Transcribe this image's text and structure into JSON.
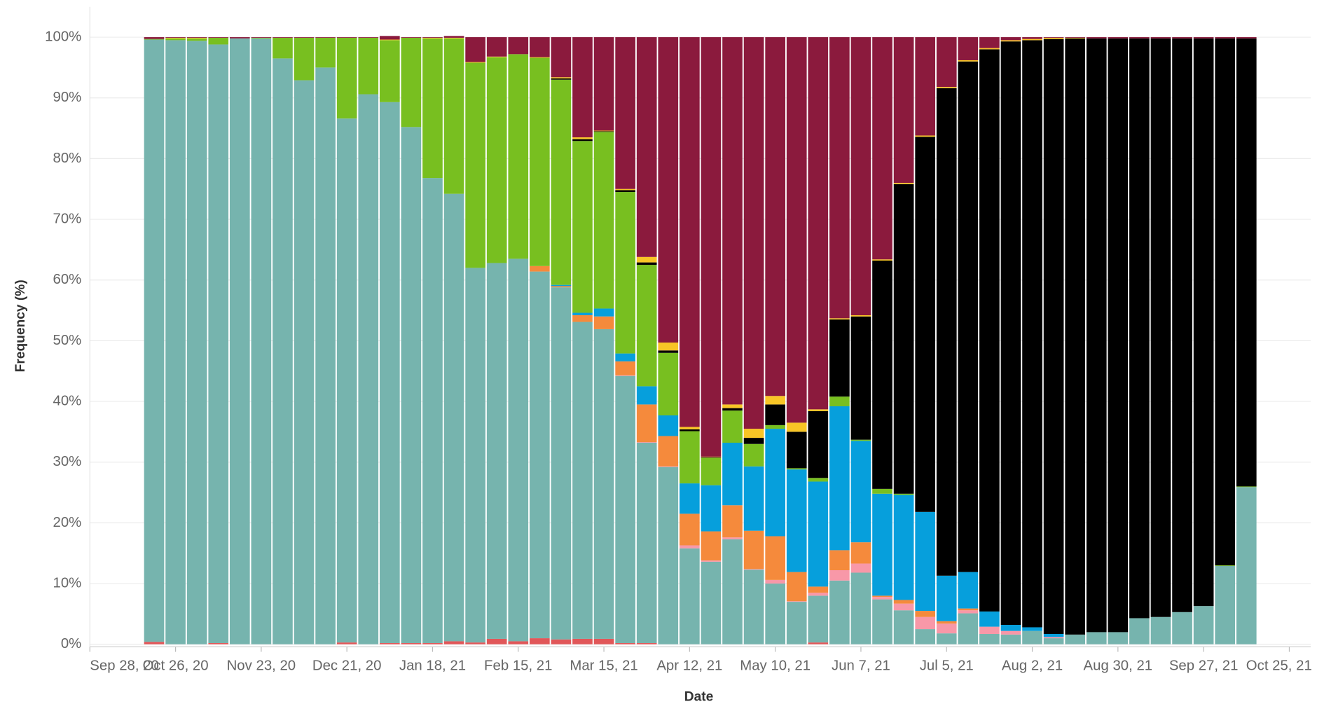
{
  "chart_data": {
    "type": "stacked_bar",
    "x_label": "Date",
    "y_label": "Frequency (%)",
    "x": [
      "2020-10-19",
      "2020-10-26",
      "2020-11-02",
      "2020-11-09",
      "2020-11-16",
      "2020-11-23",
      "2020-11-30",
      "2020-12-07",
      "2020-12-14",
      "2020-12-21",
      "2020-12-28",
      "2021-01-04",
      "2021-01-11",
      "2021-01-18",
      "2021-01-25",
      "2021-02-01",
      "2021-02-08",
      "2021-02-15",
      "2021-02-22",
      "2021-03-01",
      "2021-03-08",
      "2021-03-15",
      "2021-03-22",
      "2021-03-29",
      "2021-04-05",
      "2021-04-12",
      "2021-04-19",
      "2021-04-26",
      "2021-05-03",
      "2021-05-10",
      "2021-05-17",
      "2021-05-24",
      "2021-05-31",
      "2021-06-07",
      "2021-06-14",
      "2021-06-21",
      "2021-06-28",
      "2021-07-05",
      "2021-07-12",
      "2021-07-19",
      "2021-07-26",
      "2021-08-02",
      "2021-08-09",
      "2021-08-16",
      "2021-08-23",
      "2021-08-30",
      "2021-09-06",
      "2021-09-13",
      "2021-09-20",
      "2021-09-27",
      "2021-10-04",
      "2021-10-11"
    ],
    "series": [
      {
        "color": "#e15759",
        "values": [
          0.4,
          0,
          0,
          0.2,
          0,
          0,
          0,
          0,
          0,
          0.3,
          0,
          0.2,
          0.2,
          0.2,
          0.5,
          0.3,
          0.9,
          0.5,
          1.0,
          0.8,
          0.9,
          0.9,
          0.2,
          0.2,
          0,
          0,
          0,
          0,
          0,
          0,
          0,
          0.3,
          0,
          0,
          0,
          0,
          0,
          0,
          0,
          0,
          0,
          0,
          0,
          0,
          0,
          0,
          0,
          0,
          0,
          0,
          0,
          0
        ]
      },
      {
        "color": "#76b4ae",
        "values": [
          99.2,
          99.5,
          99.4,
          98.6,
          99.8,
          99.8,
          96.5,
          92.9,
          95.0,
          86.3,
          90.6,
          89.1,
          85.0,
          76.6,
          73.7,
          61.7,
          61.9,
          63.0,
          60.4,
          58.0,
          52.2,
          51.0,
          44.0,
          33.0,
          29.2,
          15.8,
          13.6,
          17.3,
          12.3,
          10.0,
          7.0,
          7.7,
          10.5,
          11.8,
          7.4,
          5.6,
          2.5,
          1.8,
          5.1,
          1.7,
          1.6,
          2.2,
          1.0,
          1.6,
          2.0,
          2.0,
          4.3,
          4.5,
          5.3,
          6.3,
          12.9,
          25.9
        ]
      },
      {
        "color": "#f898a8",
        "values": [
          0,
          0,
          0,
          0,
          0,
          0,
          0,
          0,
          0,
          0,
          0,
          0,
          0,
          0,
          0,
          0,
          0,
          0,
          0,
          0,
          0,
          0,
          0.1,
          0.1,
          0.1,
          0.5,
          0.2,
          0.3,
          0.1,
          0.6,
          0.1,
          0.5,
          1.7,
          1.5,
          0.4,
          1.1,
          2.0,
          1.6,
          0.5,
          1.2,
          0.6,
          0,
          0.2,
          0,
          0,
          0,
          0,
          0,
          0,
          0,
          0,
          0
        ]
      },
      {
        "color": "#f58a3c",
        "values": [
          0,
          0,
          0,
          0,
          0,
          0,
          0,
          0,
          0,
          0,
          0,
          0,
          0,
          0,
          0,
          0,
          0,
          0,
          0.9,
          0.2,
          1.1,
          2.1,
          2.3,
          6.2,
          5.0,
          5.2,
          4.8,
          5.3,
          6.3,
          7.2,
          4.8,
          1.0,
          3.3,
          3.5,
          0.2,
          0.6,
          1.0,
          0.4,
          0.3,
          0,
          0,
          0,
          0,
          0,
          0,
          0,
          0,
          0,
          0,
          0,
          0,
          0
        ]
      },
      {
        "color": "#069fdc",
        "values": [
          0,
          0,
          0,
          0,
          0,
          0,
          0,
          0,
          0,
          0,
          0,
          0,
          0,
          0,
          0,
          0,
          0,
          0,
          0,
          0.2,
          0.4,
          1.3,
          1.3,
          3.0,
          3.4,
          5.0,
          7.6,
          10.3,
          10.6,
          17.7,
          16.9,
          17.3,
          23.7,
          16.7,
          16.8,
          17.3,
          16.3,
          7.5,
          6.0,
          2.5,
          1.0,
          0.6,
          0.5,
          0,
          0,
          0,
          0,
          0,
          0,
          0,
          0,
          0
        ]
      },
      {
        "color": "#78bf20",
        "values": [
          0.1,
          0.3,
          0.4,
          1.1,
          0,
          0.1,
          3.4,
          7.0,
          4.9,
          13.3,
          9.3,
          10.2,
          14.7,
          23.0,
          25.6,
          33.8,
          33.9,
          33.7,
          34.3,
          33.8,
          28.3,
          29.1,
          26.6,
          20.0,
          10.3,
          8.6,
          4.5,
          5.3,
          3.7,
          0.6,
          0.2,
          0.6,
          1.6,
          0.2,
          0.8,
          0.2,
          0,
          0,
          0,
          0,
          0,
          0,
          0,
          0,
          0,
          0,
          0,
          0,
          0,
          0,
          0.1,
          0.1
        ]
      },
      {
        "color": "#000000",
        "values": [
          0,
          0,
          0,
          0,
          0,
          0,
          0,
          0,
          0,
          0,
          0,
          0,
          0,
          0,
          0,
          0,
          0,
          0,
          0,
          0.2,
          0.3,
          0.1,
          0.3,
          0.4,
          0.4,
          0.3,
          0.1,
          0.4,
          1.0,
          3.4,
          6.0,
          11.0,
          12.7,
          20.3,
          37.6,
          51.0,
          61.8,
          80.3,
          84.1,
          92.6,
          96.1,
          96.7,
          98.0,
          98.2,
          97.8,
          97.8,
          95.5,
          95.3,
          94.5,
          93.5,
          86.8,
          73.8
        ]
      },
      {
        "color": "#f8c526",
        "values": [
          0,
          0.1,
          0.1,
          0,
          0,
          0,
          0,
          0,
          0,
          0,
          0,
          0.1,
          0,
          0.1,
          0.1,
          0.1,
          0.1,
          0,
          0.1,
          0.2,
          0.3,
          0.1,
          0.2,
          0.9,
          1.3,
          0.4,
          0.1,
          0.6,
          1.5,
          1.4,
          1.5,
          0.3,
          0.2,
          0.2,
          0.2,
          0.2,
          0.2,
          0.2,
          0.2,
          0.2,
          0.2,
          0.2,
          0.2,
          0.1,
          0,
          0,
          0,
          0,
          0,
          0,
          0,
          0
        ]
      },
      {
        "color": "#8b1a3d",
        "values": [
          0.3,
          0.1,
          0.1,
          0.1,
          0.2,
          0.1,
          0.1,
          0.1,
          0.1,
          0.1,
          0.1,
          0.6,
          0.1,
          0.1,
          0.3,
          4.1,
          3.2,
          2.8,
          3.3,
          6.6,
          16.5,
          15.4,
          25.0,
          36.2,
          50.3,
          64.2,
          69.1,
          60.5,
          64.5,
          59.1,
          63.5,
          61.3,
          46.3,
          45.8,
          36.6,
          24.0,
          16.2,
          8.2,
          3.8,
          1.8,
          0.5,
          0.3,
          0.1,
          0.1,
          0.2,
          0.2,
          0.2,
          0.2,
          0.2,
          0.2,
          0.2,
          0.2
        ]
      }
    ],
    "xlim": [
      "2020-09-28",
      "2021-11-01"
    ],
    "xticks": [
      {
        "value": "2020-09-28",
        "label": "Sep 28, 20"
      },
      {
        "value": "2020-10-26",
        "label": "Oct 26, 20"
      },
      {
        "value": "2020-11-23",
        "label": "Nov 23, 20"
      },
      {
        "value": "2020-12-21",
        "label": "Dec 21, 20"
      },
      {
        "value": "2021-01-18",
        "label": "Jan 18, 21"
      },
      {
        "value": "2021-02-15",
        "label": "Feb 15, 21"
      },
      {
        "value": "2021-03-15",
        "label": "Mar 15, 21"
      },
      {
        "value": "2021-04-12",
        "label": "Apr 12, 21"
      },
      {
        "value": "2021-05-10",
        "label": "May 10, 21"
      },
      {
        "value": "2021-06-07",
        "label": "Jun 7, 21"
      },
      {
        "value": "2021-07-05",
        "label": "Jul 5, 21"
      },
      {
        "value": "2021-08-02",
        "label": "Aug 2, 21"
      },
      {
        "value": "2021-08-30",
        "label": "Aug 30, 21"
      },
      {
        "value": "2021-09-27",
        "label": "Sep 27, 21"
      },
      {
        "value": "2021-10-25",
        "label": "Oct 25, 21"
      }
    ],
    "ylim": [
      0,
      105
    ],
    "yticks": [
      {
        "value": 0,
        "label": "0%"
      },
      {
        "value": 10,
        "label": "10%"
      },
      {
        "value": 20,
        "label": "20%"
      },
      {
        "value": 30,
        "label": "30%"
      },
      {
        "value": 40,
        "label": "40%"
      },
      {
        "value": 50,
        "label": "50%"
      },
      {
        "value": 60,
        "label": "60%"
      },
      {
        "value": 70,
        "label": "70%"
      },
      {
        "value": 80,
        "label": "80%"
      },
      {
        "value": 90,
        "label": "90%"
      },
      {
        "value": 100,
        "label": "100%"
      }
    ],
    "grid": true
  }
}
